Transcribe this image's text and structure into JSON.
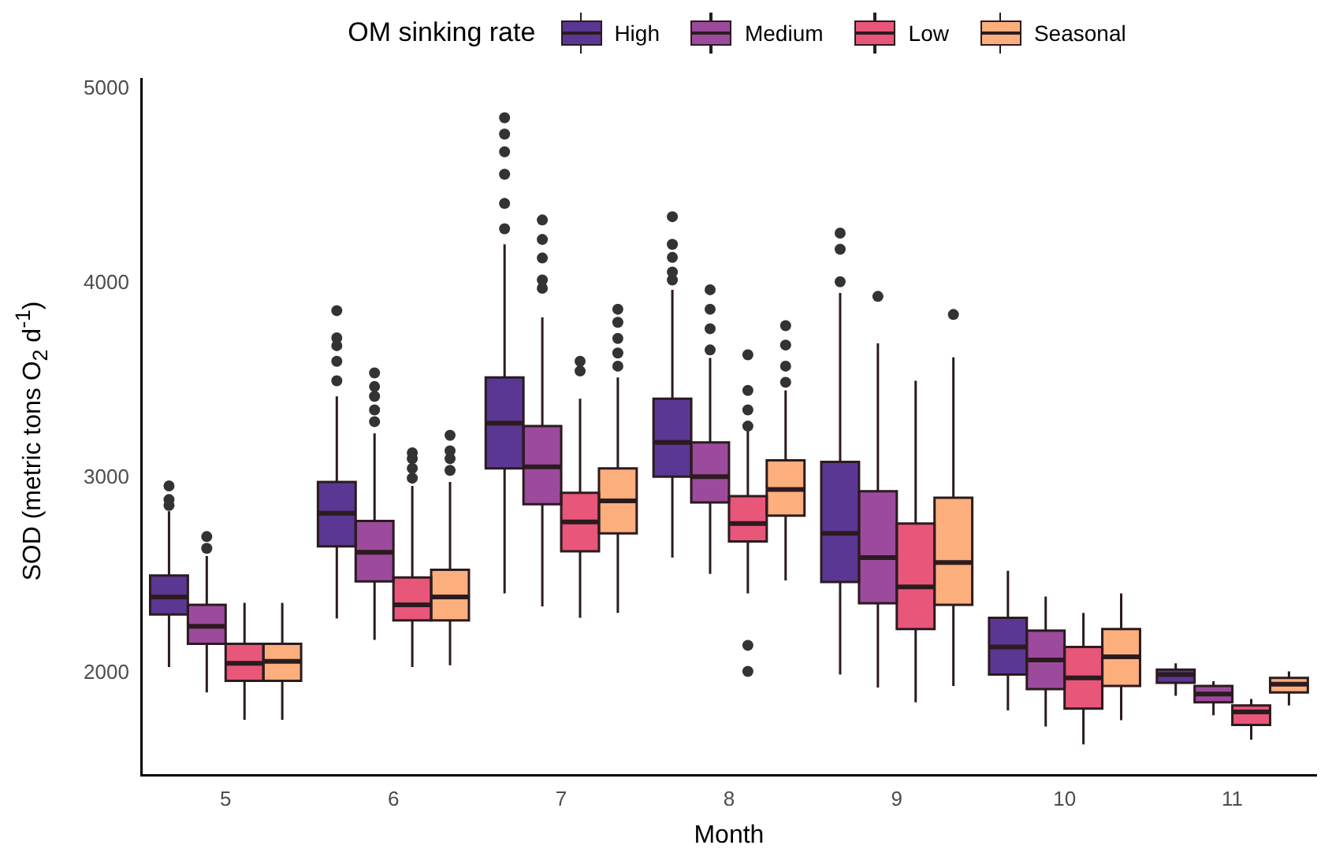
{
  "chart_data": {
    "type": "box",
    "xlabel": "Month",
    "ylabel": "SOD (metric tons O$_{2}$ d$^{-1}$)",
    "legend_title": "OM sinking rate",
    "legend": "top",
    "grid": false,
    "categories": [
      "5",
      "6",
      "7",
      "8",
      "9",
      "10",
      "11"
    ],
    "ylim": [
      1475,
      5050
    ],
    "yticks": [
      2000,
      3000,
      4000,
      5000
    ],
    "series": [
      {
        "name": "High",
        "color": "#5b3794",
        "boxes": [
          {
            "low": 2030,
            "q1": 2300,
            "median": 2390,
            "q3": 2500,
            "high": 2830,
            "outliers": [
              2860,
              2890,
              2960
            ]
          },
          {
            "low": 2280,
            "q1": 2650,
            "median": 2820,
            "q3": 2980,
            "high": 3420,
            "outliers": [
              3500,
              3600,
              3680,
              3720,
              3860
            ]
          },
          {
            "low": 2408,
            "q1": 3050,
            "median": 3283,
            "q3": 3517,
            "high": 4200,
            "outliers": [
              4280,
              4410,
              4560,
              4675,
              4766,
              4850
            ]
          },
          {
            "low": 2592,
            "q1": 3008,
            "median": 3183,
            "q3": 3408,
            "high": 3967,
            "outliers": [
              4017,
              4058,
              4133,
              4200,
              4342
            ]
          },
          {
            "low": 1992,
            "q1": 2467,
            "median": 2717,
            "q3": 3083,
            "high": 3950,
            "outliers": [
              4008,
              4175,
              4258
            ]
          },
          {
            "low": 1808,
            "q1": 1992,
            "median": 2133,
            "q3": 2283,
            "high": 2525
          },
          {
            "low": 1883,
            "q1": 1950,
            "median": 1992,
            "q3": 2017,
            "high": 2050
          }
        ]
      },
      {
        "name": "Medium",
        "color": "#9c4a9c",
        "boxes": [
          {
            "low": 1900,
            "q1": 2150,
            "median": 2240,
            "q3": 2350,
            "high": 2600,
            "outliers": [
              2640,
              2700
            ]
          },
          {
            "low": 2170,
            "q1": 2470,
            "median": 2620,
            "q3": 2780,
            "high": 3230,
            "outliers": [
              3290,
              3350,
              3420,
              3470,
              3540
            ]
          },
          {
            "low": 2342,
            "q1": 2866,
            "median": 3058,
            "q3": 3267,
            "high": 3825,
            "outliers": [
              3975,
              4017,
              4130,
              4225,
              4325
            ]
          },
          {
            "low": 2508,
            "q1": 2875,
            "median": 3008,
            "q3": 3183,
            "high": 3617,
            "outliers": [
              3658,
              3767,
              3867,
              3967
            ]
          },
          {
            "low": 1925,
            "q1": 2358,
            "median": 2592,
            "q3": 2933,
            "high": 3692,
            "outliers": [
              3933
            ]
          },
          {
            "low": 1725,
            "q1": 1917,
            "median": 2067,
            "q3": 2217,
            "high": 2392
          },
          {
            "low": 1783,
            "q1": 1850,
            "median": 1892,
            "q3": 1933,
            "high": 1958
          }
        ]
      },
      {
        "name": "Low",
        "color": "#e8567a",
        "boxes": [
          {
            "low": 1760,
            "q1": 1960,
            "median": 2050,
            "q3": 2150,
            "high": 2360
          },
          {
            "low": 2030,
            "q1": 2270,
            "median": 2350,
            "q3": 2490,
            "high": 2960,
            "outliers": [
              3000,
              3050,
              3100,
              3130
            ]
          },
          {
            "low": 2283,
            "q1": 2625,
            "median": 2775,
            "q3": 2925,
            "high": 3408,
            "outliers": [
              3550,
              3600
            ]
          },
          {
            "low": 2408,
            "q1": 2675,
            "median": 2767,
            "q3": 2908,
            "high": 3242,
            "outliers": [
              2008,
              2142,
              3267,
              3350,
              3450,
              3633
            ]
          },
          {
            "low": 1850,
            "q1": 2225,
            "median": 2442,
            "q3": 2767,
            "high": 3500
          },
          {
            "low": 1633,
            "q1": 1817,
            "median": 1975,
            "q3": 2133,
            "high": 2308
          },
          {
            "low": 1658,
            "q1": 1733,
            "median": 1800,
            "q3": 1833,
            "high": 1867
          }
        ]
      },
      {
        "name": "Seasonal",
        "color": "#fcae7d",
        "boxes": [
          {
            "low": 1760,
            "q1": 1960,
            "median": 2060,
            "q3": 2150,
            "high": 2360
          },
          {
            "low": 2040,
            "q1": 2270,
            "median": 2390,
            "q3": 2530,
            "high": 2980,
            "outliers": [
              3040,
              3100,
              3140,
              3220
            ]
          },
          {
            "low": 2308,
            "q1": 2717,
            "median": 2883,
            "q3": 3050,
            "high": 3517,
            "outliers": [
              3575,
              3642,
              3717,
              3800,
              3867
            ]
          },
          {
            "low": 2475,
            "q1": 2808,
            "median": 2942,
            "q3": 3092,
            "high": 3450,
            "outliers": [
              3492,
              3575,
              3683,
              3783
            ]
          },
          {
            "low": 1933,
            "q1": 2350,
            "median": 2567,
            "q3": 2900,
            "high": 3620,
            "outliers": [
              3840
            ]
          },
          {
            "low": 1758,
            "q1": 1933,
            "median": 2083,
            "q3": 2225,
            "high": 2408
          },
          {
            "low": 1833,
            "q1": 1900,
            "median": 1942,
            "q3": 1975,
            "high": 2008
          }
        ]
      }
    ]
  }
}
